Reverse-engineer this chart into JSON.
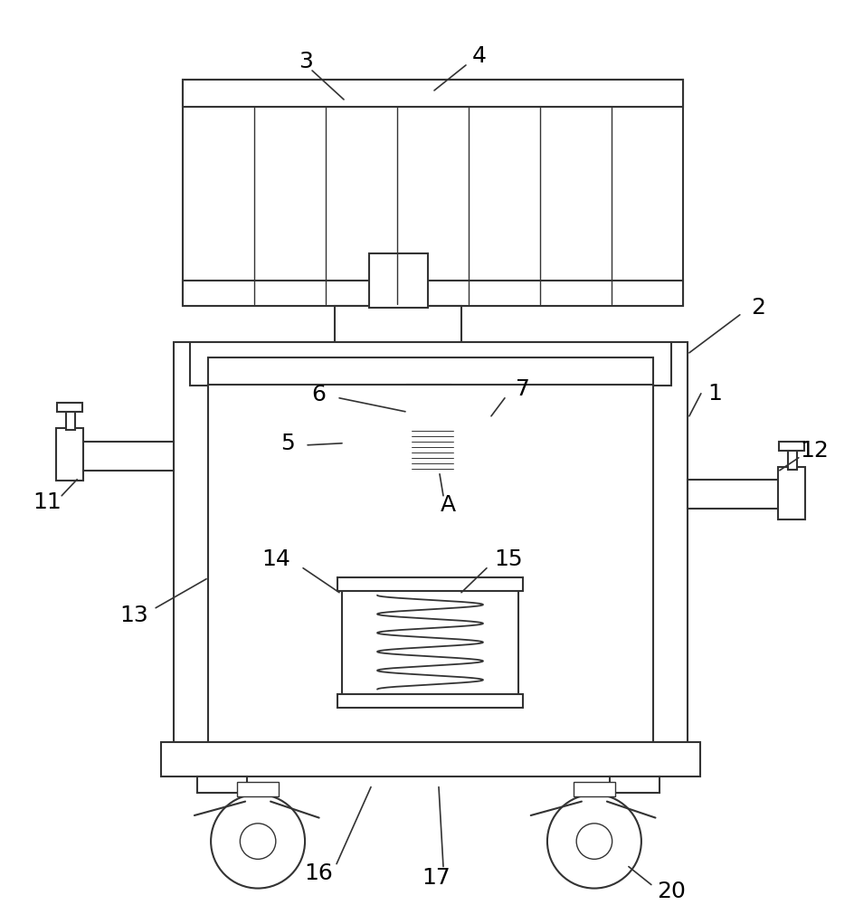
{
  "bg_color": "#ffffff",
  "line_color": "#333333",
  "lw": 1.5,
  "lw_thin": 1.0,
  "fig_w": 9.44,
  "fig_h": 10.0
}
